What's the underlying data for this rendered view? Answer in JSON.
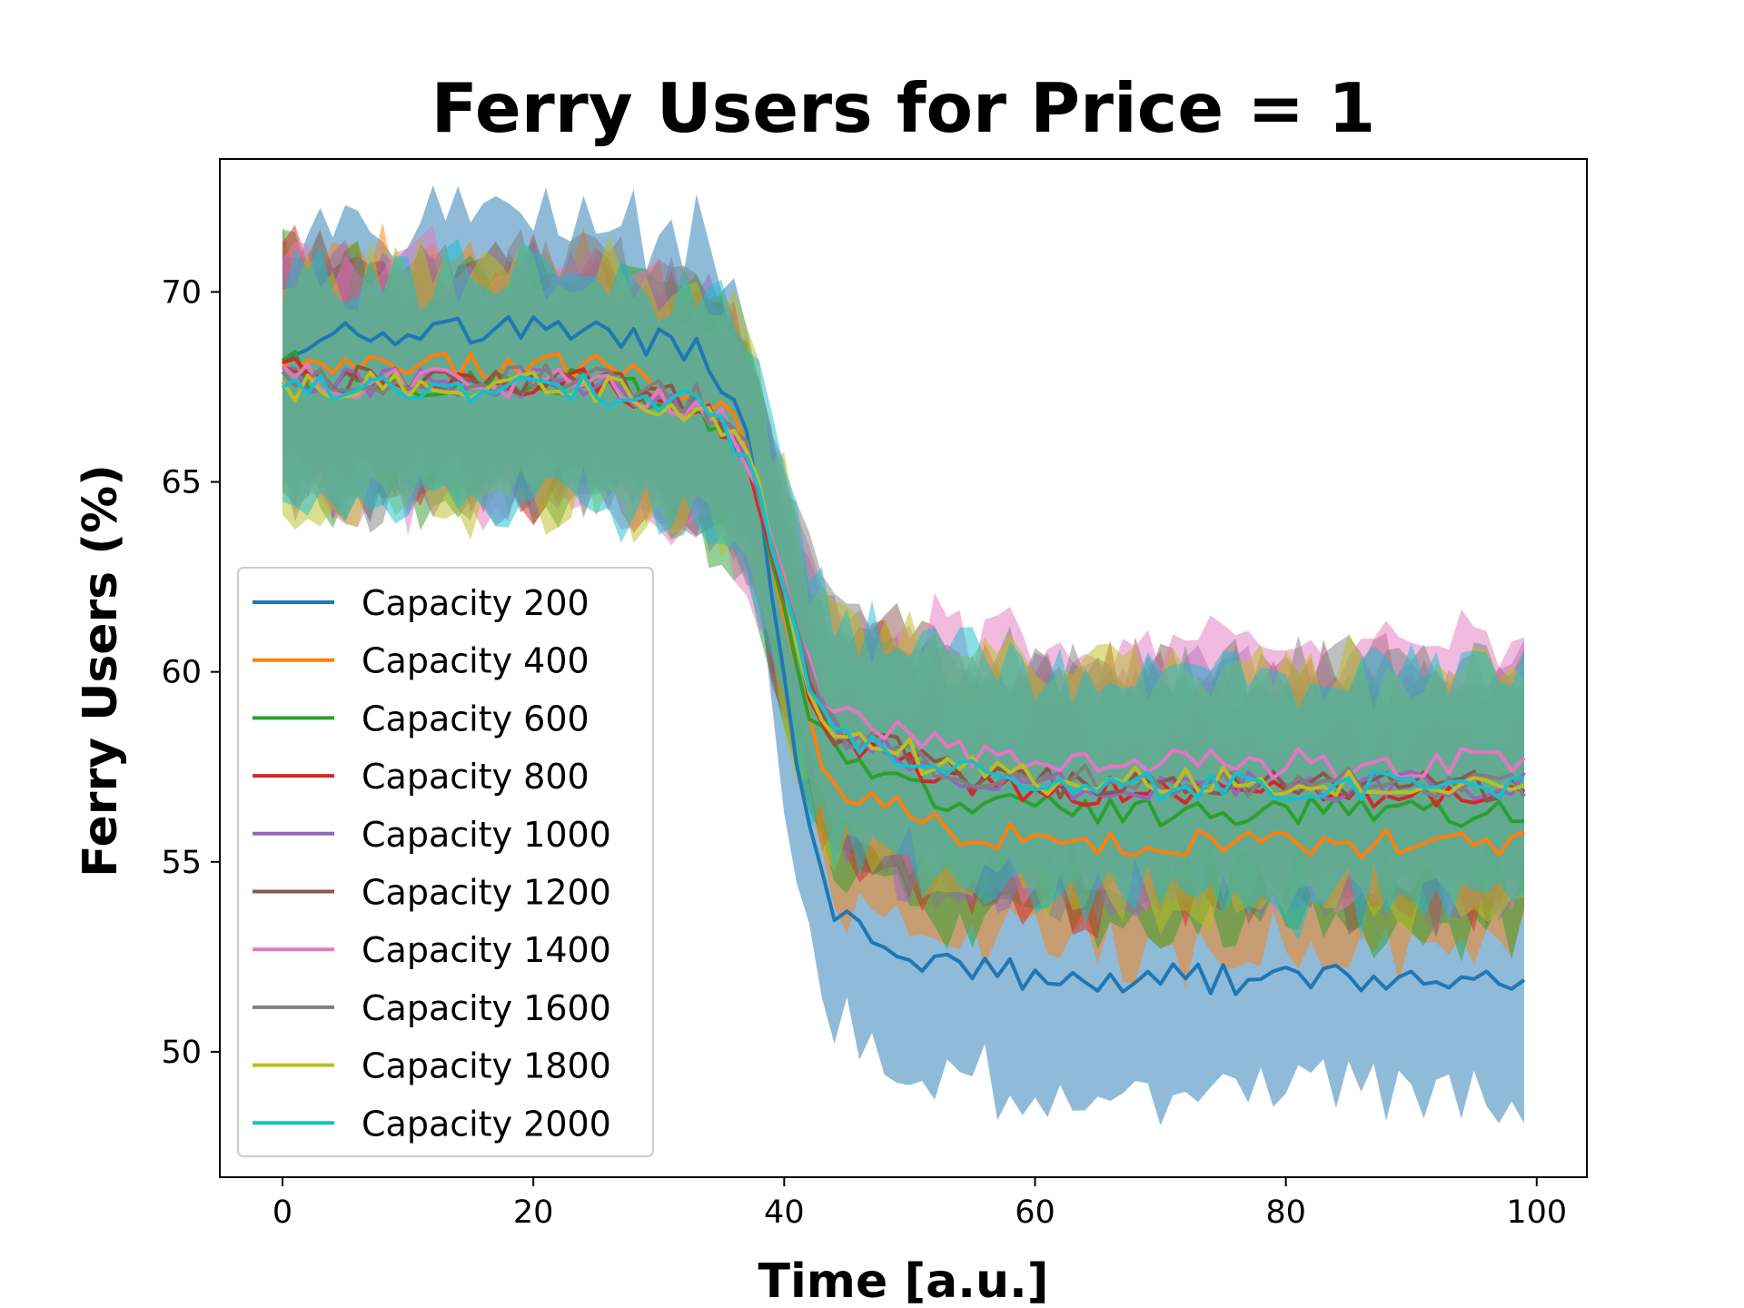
{
  "chart_data": {
    "type": "line",
    "title": "Ferry Users for Price = 1",
    "xlabel": "Time [a.u.]",
    "ylabel": "Ferry Users (%)",
    "xlim": [
      -5,
      104
    ],
    "ylim": [
      46.7,
      73.5
    ],
    "xticks": [
      0,
      20,
      40,
      60,
      80,
      100
    ],
    "yticks": [
      50,
      55,
      60,
      65,
      70
    ],
    "grid": false,
    "legend_position": "lower-left",
    "band_note": "each series is drawn with a shaded band of the same color around its line",
    "series": [
      {
        "name": "Capacity 200",
        "color": "#1f77b4",
        "start": 68.3,
        "plateau": 69.0,
        "end": 51.9,
        "band": 3.0
      },
      {
        "name": "Capacity 400",
        "color": "#ff7f0e",
        "start": 68.3,
        "plateau": 68.0,
        "end": 55.5,
        "band": 2.8
      },
      {
        "name": "Capacity 600",
        "color": "#2ca02c",
        "start": 68.3,
        "plateau": 67.6,
        "end": 56.3,
        "band": 2.9
      },
      {
        "name": "Capacity 800",
        "color": "#d62728",
        "start": 68.2,
        "plateau": 67.6,
        "end": 56.8,
        "band": 2.8
      },
      {
        "name": "Capacity 1000",
        "color": "#9467bd",
        "start": 68.0,
        "plateau": 67.6,
        "end": 57.0,
        "band": 2.9
      },
      {
        "name": "Capacity 1200",
        "color": "#8c564b",
        "start": 68.0,
        "plateau": 67.7,
        "end": 57.0,
        "band": 2.9
      },
      {
        "name": "Capacity 1400",
        "color": "#e377c2",
        "start": 68.0,
        "plateau": 67.6,
        "end": 57.6,
        "band": 3.0
      },
      {
        "name": "Capacity 1600",
        "color": "#7f7f7f",
        "start": 67.8,
        "plateau": 67.7,
        "end": 57.1,
        "band": 3.1
      },
      {
        "name": "Capacity 1800",
        "color": "#bcbd22",
        "start": 67.5,
        "plateau": 67.5,
        "end": 57.1,
        "band": 3.0
      },
      {
        "name": "Capacity 2000",
        "color": "#17becf",
        "start": 67.3,
        "plateau": 67.5,
        "end": 57.0,
        "band": 3.0
      }
    ]
  }
}
